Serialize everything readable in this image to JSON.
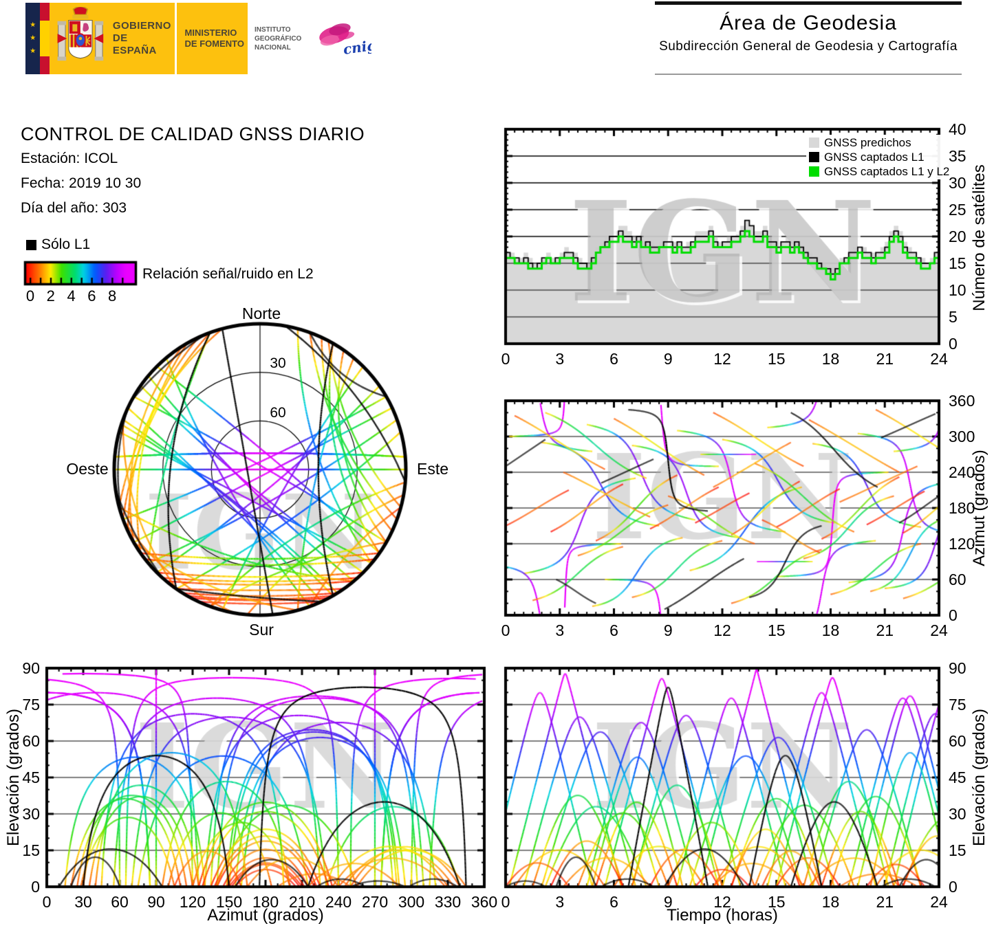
{
  "header": {
    "gobierno_line1": "GOBIERNO",
    "gobierno_line2": "DE ESPAÑA",
    "ministerio_line1": "MINISTERIO",
    "ministerio_line2": "DE FOMENTO",
    "instituto_line1": "INSTITUTO",
    "instituto_line2": "GEOGRÁFICO",
    "instituto_line3": "NACIONAL",
    "cnig": "cnig",
    "area_title": "Área de Geodesia",
    "area_subtitle": "Subdirección General de Geodesia y Cartografía"
  },
  "info": {
    "title": "CONTROL DE CALIDAD GNSS DIARIO",
    "station": "Estación: ICOL",
    "date": "Fecha: 2019 10 30",
    "doy": "Día del año: 303"
  },
  "legend": {
    "solo_l1": "Sólo L1",
    "snr_label": "Relación señal/ruido en L2",
    "snr_ticks": [
      0,
      2,
      4,
      6,
      8
    ],
    "snr_range": [
      0,
      9.8
    ]
  },
  "watermark": "IGN",
  "colors": {
    "predicted_fill": "#d8d8d8",
    "captured_l1": "#000000",
    "captured_l1l2": "#00dd00",
    "logo_yellow": "#fdc10e",
    "logo_navy": "#16254c",
    "flag_red": "#c8102e",
    "cnig_pink": "#e0218a",
    "cnig_blue": "#1a3fae",
    "snr_colormap_stops": [
      [
        0.0,
        "#ff0000"
      ],
      [
        1.2,
        "#ff7800"
      ],
      [
        2.2,
        "#ffeb00"
      ],
      [
        3.2,
        "#3ce100"
      ],
      [
        4.4,
        "#00dc6e"
      ],
      [
        5.2,
        "#00d2e6"
      ],
      [
        6.2,
        "#005aff"
      ],
      [
        7.2,
        "#5a1ef0"
      ],
      [
        8.2,
        "#be00ff"
      ],
      [
        9.0,
        "#eb00ff"
      ]
    ]
  },
  "chart_data": {
    "sat_count": {
      "type": "area",
      "xlabel": "",
      "ylabel": "Número de satélites",
      "xlim": [
        0,
        24
      ],
      "ylim": [
        0,
        40
      ],
      "xticks": [
        0,
        3,
        6,
        9,
        12,
        15,
        18,
        21,
        24
      ],
      "yticks": [
        0,
        5,
        10,
        15,
        20,
        25,
        30,
        35,
        40
      ],
      "x_minor_step": 0.5,
      "y_minor_step": 1,
      "grid": "horizontal",
      "legend_position": "top-right-inside",
      "x_step_hours": 0.25,
      "series": [
        {
          "name": "GNSS predichos",
          "style": "filled-steps",
          "color": "#d8d8d8",
          "values": [
            17,
            17,
            16,
            16,
            17,
            16,
            15,
            15,
            16,
            17,
            16,
            16,
            17,
            18,
            17,
            17,
            16,
            15,
            15,
            16,
            18,
            19,
            20,
            20,
            21,
            22,
            22,
            21,
            20,
            20,
            19,
            19,
            19,
            18,
            19,
            19,
            20,
            19,
            19,
            18,
            19,
            19,
            21,
            21,
            21,
            22,
            20,
            19,
            19,
            20,
            20,
            21,
            22,
            23,
            22,
            21,
            21,
            22,
            20,
            19,
            19,
            19,
            20,
            19,
            19,
            18,
            17,
            17,
            16,
            15,
            15,
            14,
            13,
            14,
            16,
            16,
            17,
            18,
            18,
            18,
            17,
            17,
            17,
            18,
            19,
            21,
            22,
            21,
            19,
            18,
            17,
            16,
            16,
            15,
            16,
            17,
            19
          ]
        },
        {
          "name": "GNSS captados L1",
          "style": "steps",
          "color": "#000000",
          "values": [
            17,
            16,
            16,
            15,
            16,
            15,
            14,
            15,
            16,
            16,
            15,
            16,
            16,
            17,
            17,
            16,
            15,
            15,
            14,
            16,
            17,
            18,
            19,
            20,
            20,
            21,
            20,
            20,
            19,
            20,
            18,
            19,
            18,
            18,
            18,
            19,
            19,
            18,
            19,
            18,
            18,
            19,
            20,
            20,
            20,
            21,
            19,
            18,
            19,
            19,
            20,
            20,
            21,
            23,
            22,
            20,
            20,
            21,
            19,
            19,
            18,
            19,
            19,
            18,
            19,
            18,
            17,
            16,
            16,
            15,
            14,
            14,
            13,
            14,
            15,
            16,
            17,
            17,
            18,
            17,
            17,
            16,
            17,
            17,
            18,
            20,
            21,
            20,
            18,
            17,
            17,
            16,
            15,
            15,
            15,
            17,
            19
          ]
        },
        {
          "name": "GNSS captados L1 y L2",
          "style": "steps",
          "color": "#00dd00",
          "values": [
            16,
            16,
            15,
            15,
            15,
            14,
            14,
            14,
            15,
            16,
            15,
            15,
            16,
            16,
            16,
            15,
            14,
            14,
            14,
            15,
            17,
            18,
            18,
            19,
            19,
            20,
            19,
            19,
            18,
            19,
            18,
            18,
            17,
            17,
            18,
            18,
            18,
            17,
            18,
            17,
            17,
            18,
            19,
            19,
            19,
            20,
            18,
            18,
            18,
            18,
            19,
            19,
            20,
            21,
            20,
            19,
            19,
            20,
            18,
            18,
            17,
            18,
            18,
            17,
            18,
            17,
            16,
            15,
            15,
            14,
            14,
            13,
            12,
            13,
            15,
            15,
            16,
            16,
            17,
            16,
            16,
            15,
            16,
            16,
            17,
            19,
            20,
            19,
            17,
            16,
            16,
            15,
            14,
            14,
            15,
            16,
            17
          ]
        }
      ]
    },
    "satellite_passes": {
      "description": "GNSS satellite passes over station ICOL, day 303/2019. Shared by skyplot, azimuth-vs-time, elevation-vs-azimuth and elevation-vs-time panels. Track colour encodes L2 signal/noise ratio (0-9 rainbow scale); solo_L1_flag=1 tracks are plotted black (L1 only).",
      "passes_format": "[rise_azimuth_deg, set_azimuth_deg, t_start_h, t_end_h, bend, snr_offset, solo_L1_flag]",
      "passes": [
        [
          300,
          120,
          0.2,
          6.4,
          0.05,
          1.8,
          0
        ],
        [
          290,
          150,
          2.0,
          8.5,
          -0.1,
          1.6,
          0
        ],
        [
          320,
          160,
          4.5,
          10.5,
          0.15,
          2.0,
          0
        ],
        [
          285,
          130,
          7.0,
          13.0,
          0.0,
          1.8,
          0
        ],
        [
          310,
          140,
          9.5,
          15.5,
          0.1,
          2.0,
          0
        ],
        [
          295,
          155,
          12.0,
          18.2,
          -0.05,
          1.7,
          0
        ],
        [
          315,
          125,
          14.5,
          20.5,
          0.05,
          1.9,
          0
        ],
        [
          288,
          148,
          17.0,
          23.0,
          -0.12,
          1.6,
          0
        ],
        [
          305,
          135,
          19.5,
          25.3,
          0.08,
          1.9,
          0
        ],
        [
          70,
          230,
          1.0,
          7.2,
          0.1,
          1.8,
          0
        ],
        [
          60,
          250,
          5.5,
          11.8,
          -0.08,
          2.0,
          0
        ],
        [
          75,
          215,
          10.2,
          16.4,
          0.12,
          1.7,
          0
        ],
        [
          65,
          240,
          15.0,
          21.2,
          0.0,
          1.9,
          0
        ],
        [
          55,
          225,
          19.0,
          25.0,
          0.1,
          1.8,
          0
        ],
        [
          270,
          90,
          10.8,
          17.0,
          0.0,
          2.1,
          0
        ],
        [
          275,
          85,
          21.5,
          27.2,
          0.05,
          1.9,
          0
        ],
        [
          85,
          275,
          -1.0,
          4.8,
          0.05,
          2.0,
          0
        ],
        [
          340,
          230,
          2.2,
          7.8,
          0.12,
          1.8,
          0
        ],
        [
          15,
          130,
          4.8,
          9.8,
          -0.26,
          1.5,
          0
        ],
        [
          335,
          245,
          0.5,
          5.5,
          0.25,
          0.8,
          0
        ],
        [
          330,
          235,
          6.0,
          11.0,
          0.28,
          0.9,
          0
        ],
        [
          340,
          250,
          11.5,
          16.5,
          0.22,
          0.7,
          0
        ],
        [
          328,
          240,
          16.8,
          21.8,
          0.3,
          0.8,
          0
        ],
        [
          345,
          255,
          20.5,
          25.5,
          0.25,
          0.9,
          0
        ],
        [
          25,
          115,
          1.5,
          6.5,
          -0.25,
          0.8,
          0
        ],
        [
          30,
          125,
          7.0,
          12.0,
          -0.28,
          0.9,
          0
        ],
        [
          20,
          110,
          12.5,
          17.5,
          -0.22,
          0.7,
          0
        ],
        [
          35,
          120,
          18.0,
          23.0,
          -0.3,
          0.8,
          0
        ],
        [
          28,
          105,
          22.0,
          27.0,
          -0.2,
          0.9,
          0
        ],
        [
          150,
          210,
          0.0,
          3.5,
          0.05,
          0.2,
          0
        ],
        [
          140,
          220,
          2.5,
          6.5,
          0.05,
          0.0,
          0
        ],
        [
          125,
          235,
          5.0,
          9.5,
          0.08,
          0.3,
          0
        ],
        [
          145,
          215,
          8.0,
          11.8,
          0.02,
          0.1,
          0
        ],
        [
          155,
          205,
          10.5,
          13.5,
          0.03,
          0.0,
          0
        ],
        [
          135,
          225,
          12.5,
          16.3,
          0.06,
          0.2,
          0
        ],
        [
          148,
          212,
          15.0,
          18.5,
          0.04,
          0.1,
          0
        ],
        [
          128,
          232,
          17.5,
          21.8,
          0.08,
          0.3,
          0
        ],
        [
          152,
          208,
          20.0,
          23.2,
          0.03,
          0.0,
          0
        ],
        [
          138,
          222,
          22.0,
          25.8,
          0.05,
          0.2,
          0
        ],
        [
          240,
          165,
          3.2,
          8.0,
          0.15,
          0.9,
          0
        ],
        [
          255,
          140,
          13.8,
          19.3,
          0.18,
          1.0,
          0
        ],
        [
          100,
          185,
          4.0,
          9.0,
          -0.15,
          0.8,
          0
        ],
        [
          95,
          200,
          16.5,
          21.5,
          -0.18,
          0.9,
          0
        ],
        [
          200,
          120,
          9.0,
          13.8,
          -0.12,
          0.8,
          0
        ],
        [
          190,
          250,
          18.5,
          22.8,
          0.15,
          0.9,
          0
        ],
        [
          160,
          105,
          14.2,
          17.4,
          -0.1,
          0.4,
          0
        ],
        [
          215,
          290,
          11.5,
          15.8,
          0.2,
          0.9,
          0
        ],
        [
          40,
          165,
          20.2,
          24.6,
          -0.15,
          0.9,
          0
        ],
        [
          45,
          195,
          21.0,
          26.6,
          -0.1,
          1.6,
          0
        ],
        [
          345,
          175,
          6.8,
          11.2,
          0.0,
          0,
          1
        ],
        [
          30,
          150,
          13.5,
          17.5,
          -0.2,
          0,
          1
        ],
        [
          222,
          262,
          5.3,
          8.2,
          0.05,
          0,
          1
        ],
        [
          298,
          338,
          20.8,
          23.8,
          0.05,
          0,
          1
        ],
        [
          60,
          20,
          2.8,
          5.0,
          -0.15,
          0,
          1
        ],
        [
          10,
          95,
          8.8,
          13.2,
          0.18,
          0,
          1
        ],
        [
          250,
          295,
          0.0,
          2.2,
          0.1,
          0,
          1
        ],
        [
          155,
          215,
          21.8,
          24.8,
          0.02,
          0,
          1
        ],
        [
          340,
          215,
          15.8,
          20.6,
          0.3,
          0,
          1
        ]
      ]
    },
    "skyplot": {
      "type": "skyplot-polar",
      "north": "Norte",
      "south": "Sur",
      "west": "Oeste",
      "east": "Este",
      "ring30": "30",
      "ring60": "60",
      "elevation_rings_deg": [
        0,
        30,
        60
      ],
      "azimuth_convention": "0=Norte top, 90=Este right, clockwise",
      "data_source": "satellite_passes"
    },
    "azimuth_vs_time": {
      "type": "line",
      "xlabel": "",
      "ylabel": "Azimut (grados)",
      "xlim": [
        0,
        24
      ],
      "ylim": [
        0,
        360
      ],
      "xticks": [
        0,
        3,
        6,
        9,
        12,
        15,
        18,
        21,
        24
      ],
      "yticks": [
        0,
        60,
        120,
        180,
        240,
        300,
        360
      ],
      "x_minor_step": 0.5,
      "y_minor_step": 20,
      "grid": "horizontal",
      "data_source": "satellite_passes"
    },
    "elevation_vs_azimuth": {
      "type": "line",
      "xlabel": "Azimut (grados)",
      "ylabel": "Elevación (grados)",
      "xlim": [
        0,
        360
      ],
      "ylim": [
        0,
        90
      ],
      "xticks": [
        0,
        30,
        60,
        90,
        120,
        150,
        180,
        210,
        240,
        270,
        300,
        330,
        360
      ],
      "yticks": [
        0,
        15,
        30,
        45,
        60,
        75,
        90
      ],
      "x_minor_step": 10,
      "y_minor_step": 5,
      "grid": "horizontal",
      "data_source": "satellite_passes"
    },
    "elevation_vs_time": {
      "type": "line",
      "xlabel": "Tiempo (horas)",
      "ylabel": "Elevación (grados)",
      "xlim": [
        0,
        24
      ],
      "ylim": [
        0,
        90
      ],
      "xticks": [
        0,
        3,
        6,
        9,
        12,
        15,
        18,
        21,
        24
      ],
      "yticks": [
        0,
        15,
        30,
        45,
        60,
        75,
        90
      ],
      "x_minor_step": 0.5,
      "y_minor_step": 5,
      "grid": "horizontal",
      "data_source": "satellite_passes"
    }
  }
}
